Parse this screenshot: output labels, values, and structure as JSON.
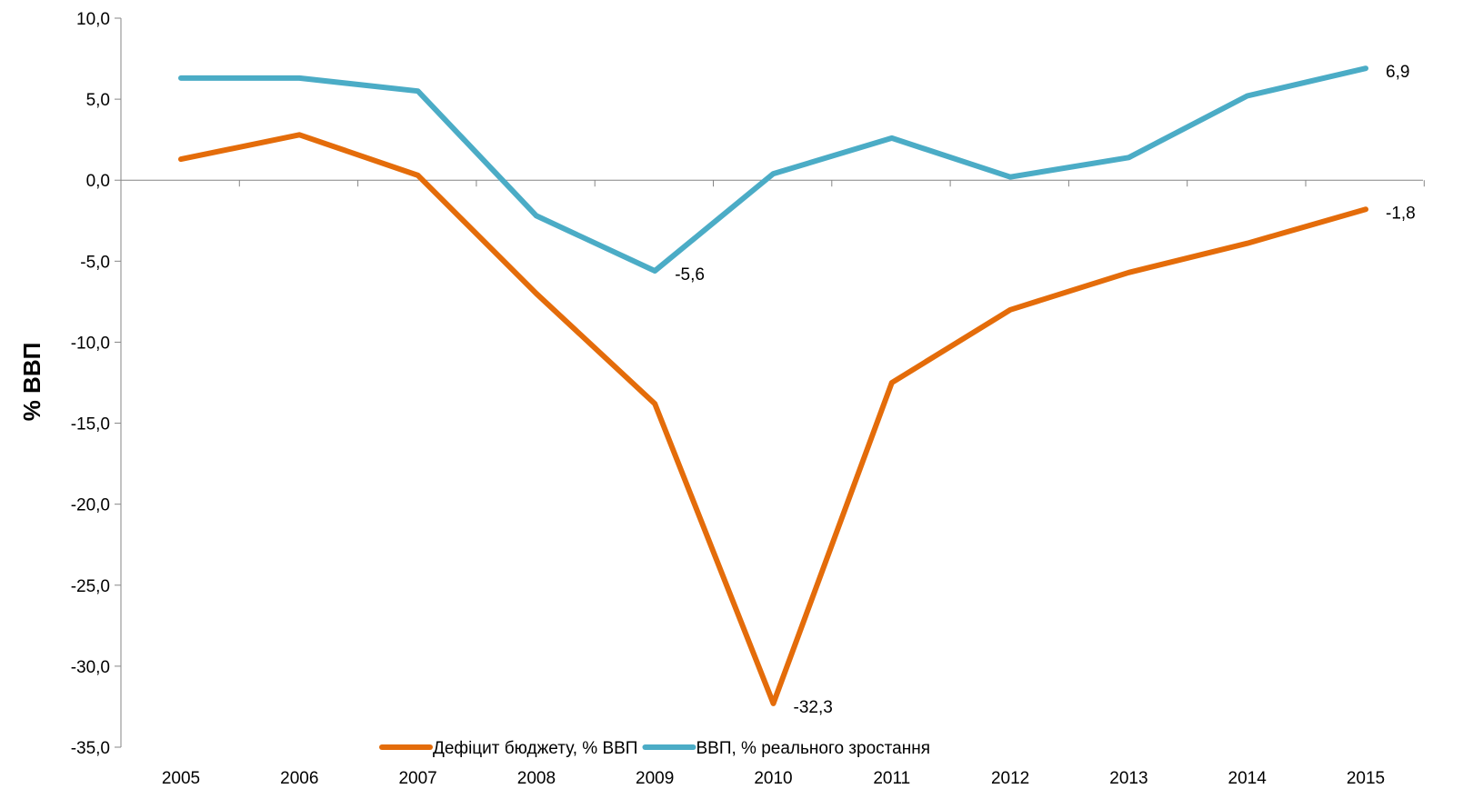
{
  "chart_data": {
    "type": "line",
    "title": "",
    "xlabel": "",
    "ylabel": "% ВВП",
    "categories": [
      "2005",
      "2006",
      "2007",
      "2008",
      "2009",
      "2010",
      "2011",
      "2012",
      "2013",
      "2014",
      "2015"
    ],
    "ylim": [
      -35,
      10
    ],
    "yticks": [
      10,
      5,
      0,
      -5,
      -10,
      -15,
      -20,
      -25,
      -30,
      -35
    ],
    "ytick_labels": [
      "10,0",
      "5,0",
      "0,0",
      "-5,0",
      "-10,0",
      "-15,0",
      "-20,0",
      "-25,0",
      "-30,0",
      "-35,0"
    ],
    "grid": false,
    "legend_position": "bottom",
    "series": [
      {
        "name": "Дефіцит бюджету, % ВВП",
        "color": "#E46C0A",
        "values": [
          1.3,
          2.8,
          0.3,
          -7.0,
          -13.8,
          -32.3,
          -12.5,
          -8.0,
          -5.7,
          -3.9,
          -1.8
        ]
      },
      {
        "name": "ВВП, % реального зростання",
        "color": "#4BACC6",
        "values": [
          6.3,
          6.3,
          5.5,
          -2.2,
          -5.6,
          0.4,
          2.6,
          0.2,
          1.4,
          5.2,
          6.9
        ]
      }
    ],
    "annotations": [
      {
        "series": 0,
        "index": 5,
        "text": "-32,3"
      },
      {
        "series": 0,
        "index": 10,
        "text": "-1,8"
      },
      {
        "series": 1,
        "index": 4,
        "text": "-5,6"
      },
      {
        "series": 1,
        "index": 10,
        "text": "6,9"
      }
    ]
  }
}
